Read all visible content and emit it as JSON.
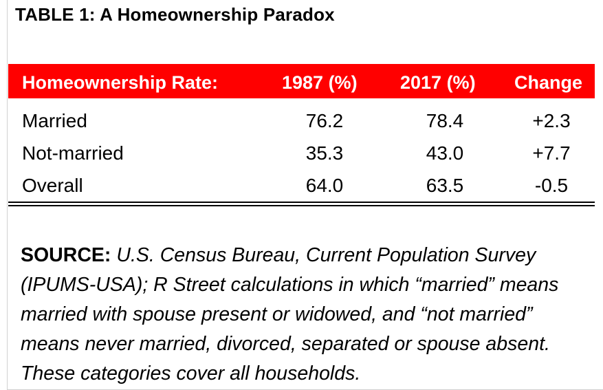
{
  "title": "TABLE 1: A Homeownership Paradox",
  "table": {
    "header_color": "#ff0000",
    "columns": [
      "Homeownership Rate:",
      "1987 (%)",
      "2017 (%)",
      "Change"
    ],
    "rows": [
      [
        "Married",
        "76.2",
        "78.4",
        "+2.3"
      ],
      [
        "Not-married",
        "35.3",
        "43.0",
        "+7.7"
      ],
      [
        "Overall",
        "64.0",
        "63.5",
        "-0.5"
      ]
    ]
  },
  "source": {
    "label": "SOURCE:",
    "text": " U.S. Census Bureau, Current Population Survey (IPUMS-USA); R Street calculations in which “married” means married with spouse present or widowed, and “not married” means never married, divorced, separated or spouse absent. These categories cover all households."
  }
}
